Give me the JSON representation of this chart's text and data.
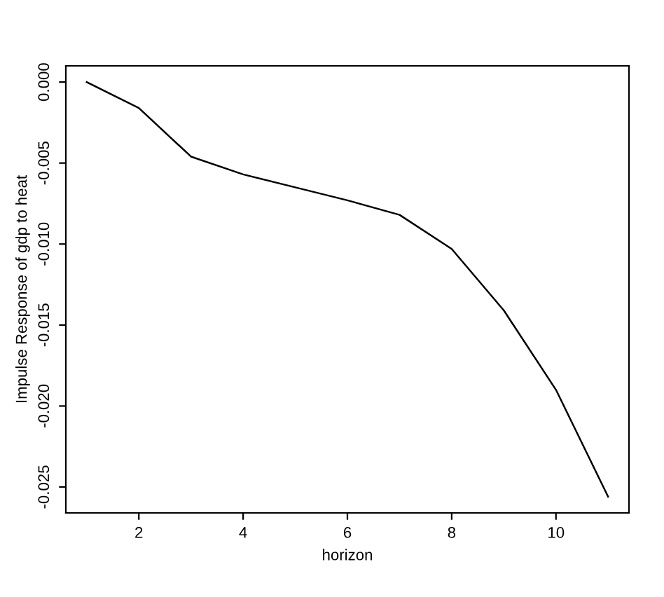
{
  "chart_data": {
    "type": "line",
    "xlabel": "horizon",
    "ylabel": "Impulse Response of gdp to heat",
    "x": [
      1,
      2,
      3,
      4,
      5,
      6,
      7,
      8,
      9,
      10,
      11
    ],
    "series": [
      {
        "color": "#000000",
        "values": [
          0.0,
          -0.0016,
          -0.0046,
          -0.0057,
          -0.0065,
          -0.0073,
          -0.0082,
          -0.0103,
          -0.0141,
          -0.019,
          -0.0256
        ]
      }
    ],
    "xlim": [
      0.6,
      11.4
    ],
    "xticks": [
      2,
      4,
      6,
      8,
      10
    ],
    "ylim": [
      -0.0266,
      0.001
    ],
    "yticks": [
      {
        "value": -0.025,
        "label": "-0.025"
      },
      {
        "value": -0.02,
        "label": "-0.020"
      },
      {
        "value": -0.015,
        "label": "-0.015"
      },
      {
        "value": -0.01,
        "label": "-0.010"
      },
      {
        "value": -0.005,
        "label": "-0.005"
      },
      {
        "value": 0,
        "label": "0.000"
      }
    ],
    "grid": false,
    "legend": false,
    "marker": "none",
    "line_style": "solid"
  }
}
